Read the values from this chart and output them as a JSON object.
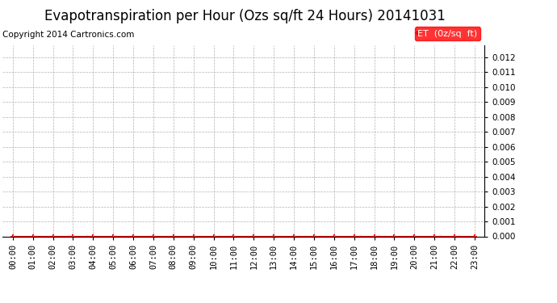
{
  "title": "Evapotranspiration per Hour (Ozs sq/ft 24 Hours) 20141031",
  "copyright_text": "Copyright 2014 Cartronics.com",
  "legend_label": "ET  (0z/sq  ft)",
  "x_labels": [
    "00:00",
    "01:00",
    "02:00",
    "03:00",
    "04:00",
    "05:00",
    "06:00",
    "07:00",
    "08:00",
    "09:00",
    "10:00",
    "11:00",
    "12:00",
    "13:00",
    "14:00",
    "15:00",
    "16:00",
    "17:00",
    "18:00",
    "19:00",
    "20:00",
    "21:00",
    "22:00",
    "23:00"
  ],
  "y_values": [
    0,
    0,
    0,
    0,
    0,
    0,
    0,
    0,
    0,
    0,
    0,
    0,
    0,
    0,
    0,
    0,
    0,
    0,
    0,
    0,
    0,
    0,
    0,
    0
  ],
  "ylim": [
    0,
    0.0128
  ],
  "yticks": [
    0.0,
    0.001,
    0.002,
    0.003,
    0.004,
    0.005,
    0.006,
    0.007,
    0.008,
    0.009,
    0.01,
    0.011,
    0.012
  ],
  "line_color": "#ff0000",
  "marker_color": "#ff0000",
  "grid_color": "#aaaaaa",
  "bg_color": "#ffffff",
  "legend_bg": "#ff0000",
  "legend_text_color": "#ffffff",
  "title_fontsize": 12,
  "copyright_fontsize": 7.5,
  "tick_fontsize": 7.5,
  "legend_fontsize": 8
}
